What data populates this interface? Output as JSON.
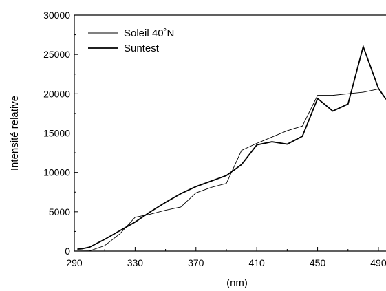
{
  "chart_data": {
    "type": "line",
    "xlabel": "(nm)",
    "ylabel": "Intensité relative",
    "xlim": [
      290,
      495
    ],
    "ylim": [
      0,
      30000
    ],
    "x_ticks": [
      "290",
      "330",
      "370",
      "410",
      "450",
      "490"
    ],
    "y_ticks": [
      "0",
      "5000",
      "10000",
      "15000",
      "20000",
      "25000",
      "30000"
    ],
    "grid": false,
    "legend_position": "top-left",
    "series": [
      {
        "name": "Soleil 40˚N",
        "color": "#000000",
        "width": "thin",
        "x": [
          290,
          300,
          310,
          320,
          330,
          340,
          350,
          360,
          370,
          380,
          390,
          400,
          410,
          420,
          430,
          440,
          450,
          460,
          470,
          480,
          490,
          495
        ],
        "y": [
          0,
          30,
          700,
          2200,
          4300,
          4700,
          5200,
          5600,
          7400,
          8100,
          8600,
          12800,
          13700,
          14500,
          15300,
          15900,
          19800,
          19800,
          20000,
          20200,
          20600,
          20600
        ]
      },
      {
        "name": "Suntest",
        "color": "#000000",
        "width": "thick",
        "x": [
          292,
          295,
          300,
          310,
          320,
          330,
          340,
          350,
          360,
          370,
          380,
          390,
          400,
          410,
          420,
          430,
          440,
          450,
          460,
          470,
          480,
          490,
          495
        ],
        "y": [
          250,
          300,
          500,
          1500,
          2600,
          3700,
          5000,
          6200,
          7300,
          8200,
          8900,
          9600,
          11000,
          13500,
          13900,
          13600,
          14600,
          19400,
          17800,
          18700,
          26000,
          20700,
          19300
        ]
      }
    ]
  }
}
